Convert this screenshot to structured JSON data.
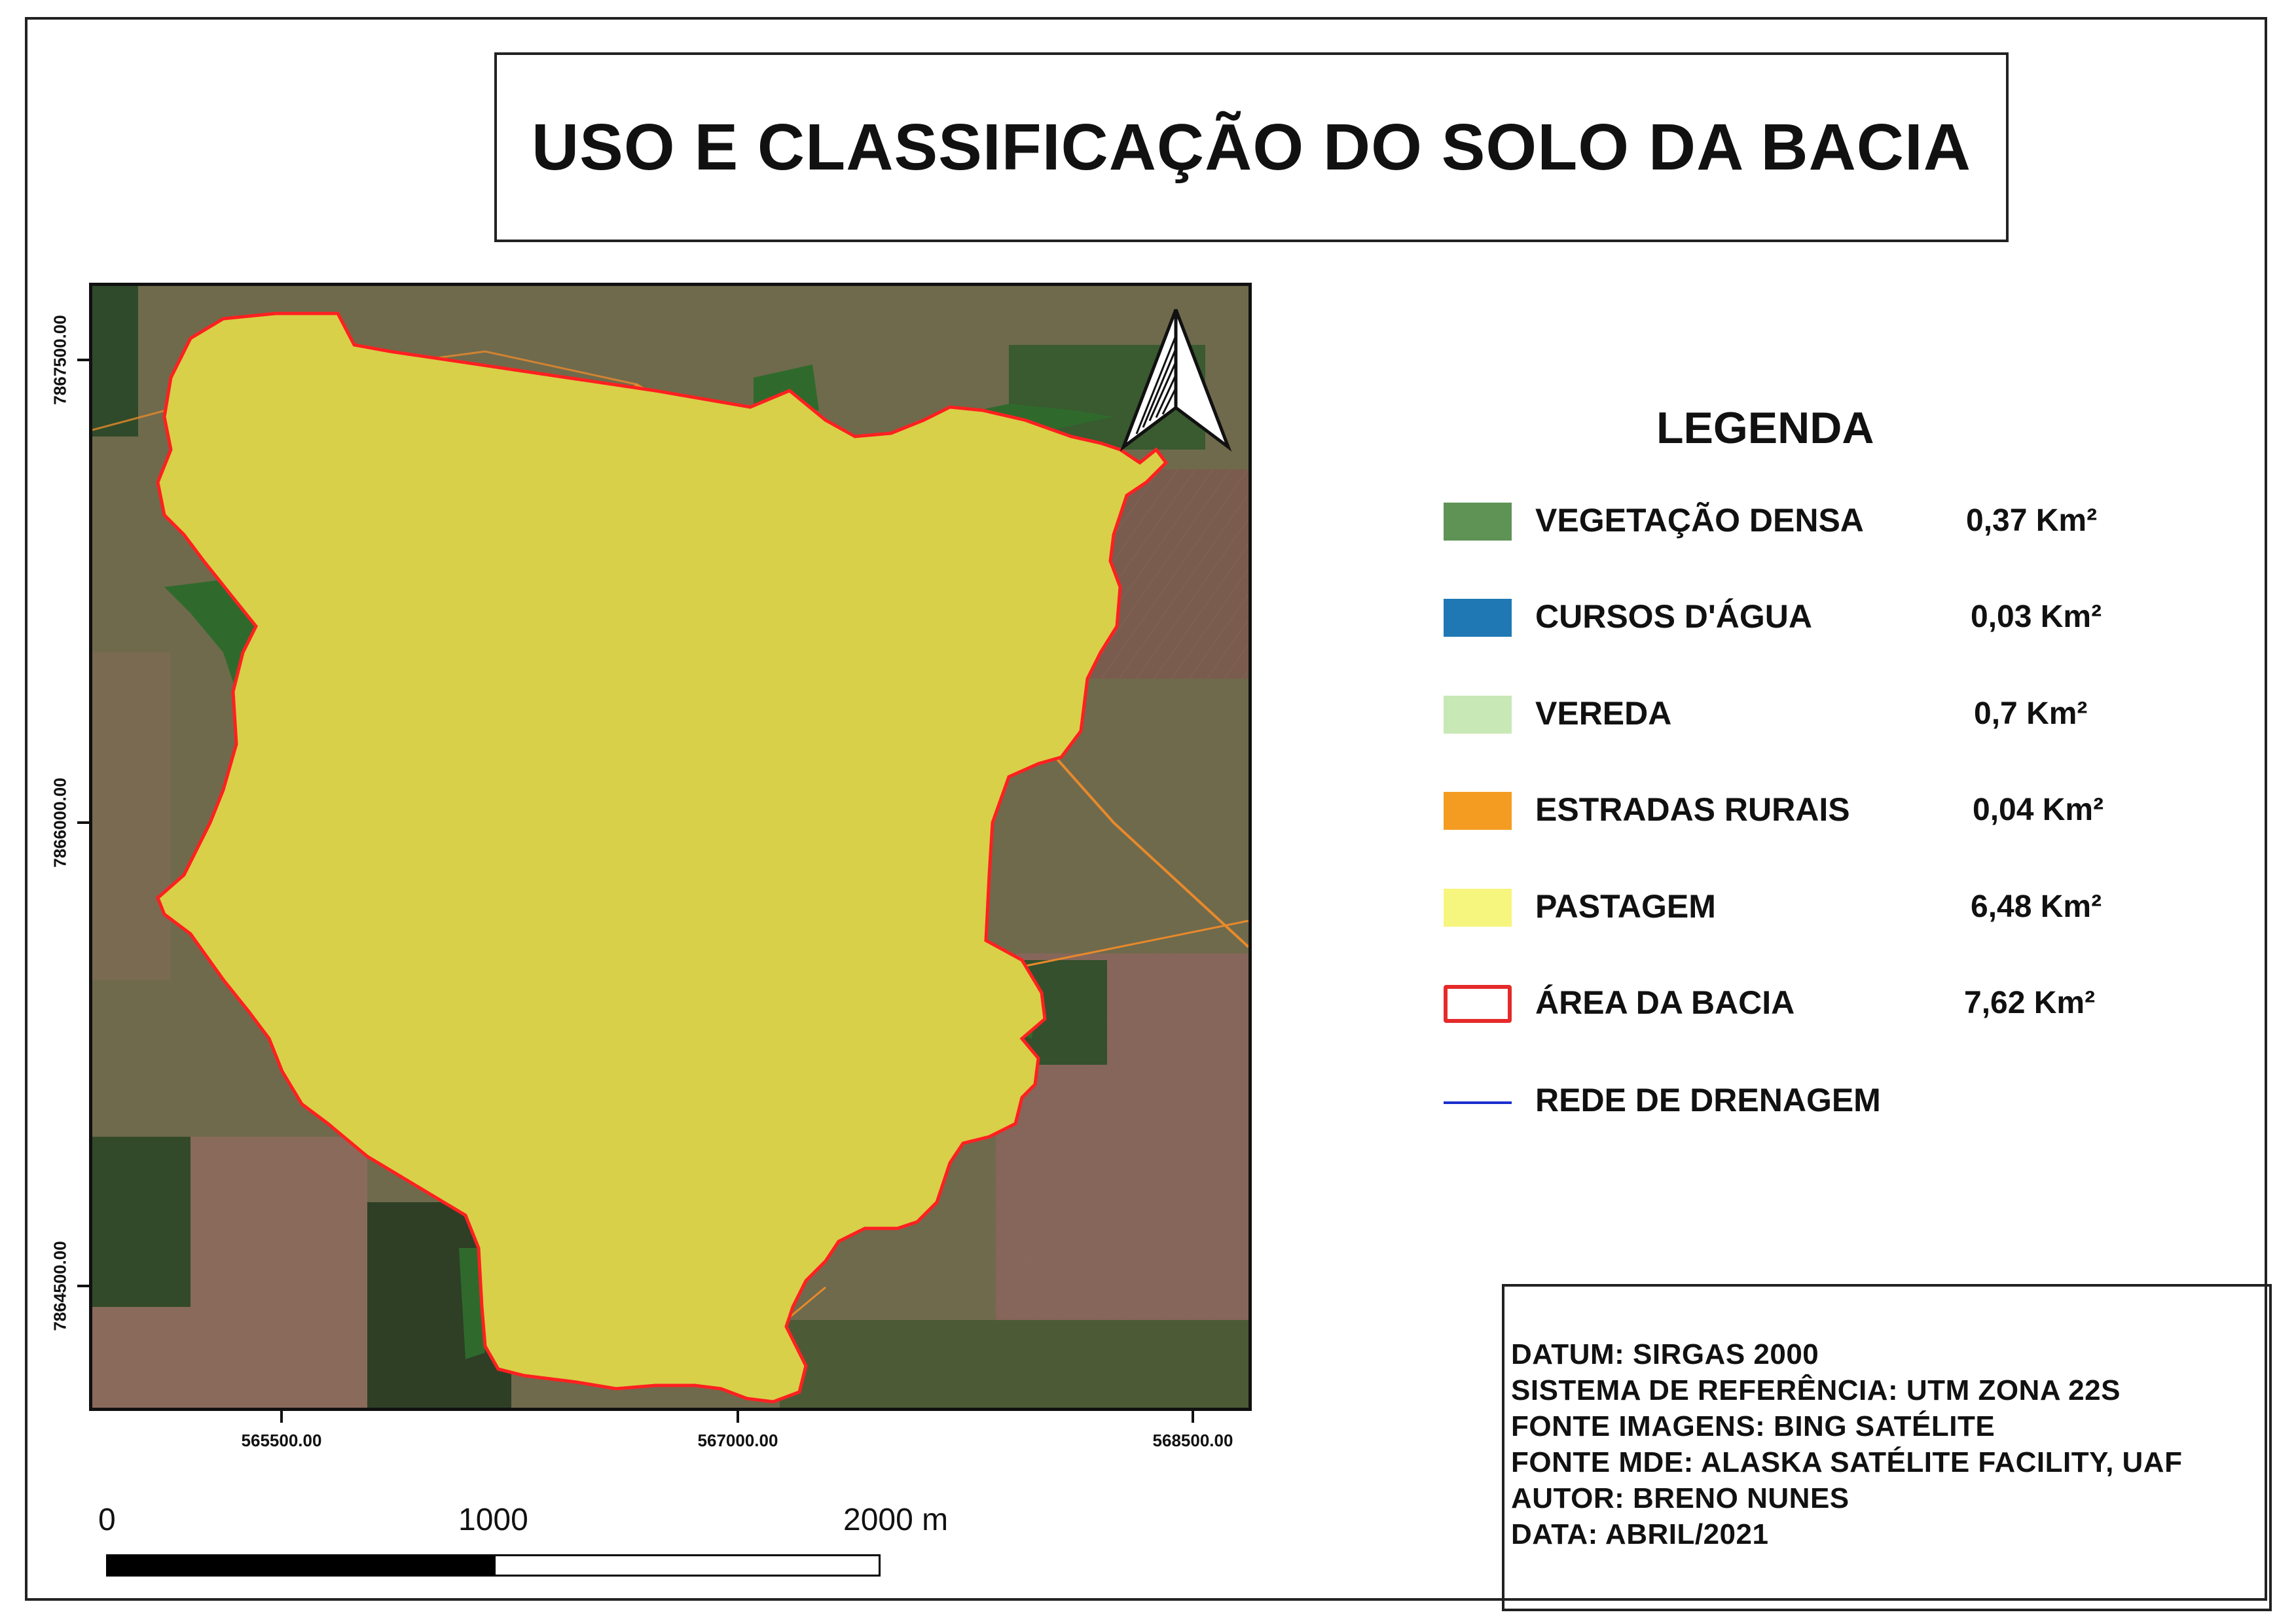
{
  "title": "USO E CLASSIFICAÇÃO DO SOLO DA BACIA",
  "coords": {
    "y": [
      "7867500.00",
      "7866000.00",
      "7864500.00"
    ],
    "x": [
      "565500.00",
      "567000.00",
      "568500.00"
    ]
  },
  "legend": {
    "title": "LEGENDA",
    "items": [
      {
        "label": "VEGETAÇÃO DENSA",
        "value": "0,37 Km²",
        "color": "#5f9356"
      },
      {
        "label": "CURSOS D'ÁGUA",
        "value": "0,03 Km²",
        "color": "#1f78b4"
      },
      {
        "label": "VEREDA",
        "value": "0,7 Km²",
        "color": "#c8e9b6"
      },
      {
        "label": "ESTRADAS RURAIS",
        "value": "0,04 Km²",
        "color": "#f39c21"
      },
      {
        "label": "PASTAGEM",
        "value": "6,48 Km²",
        "color": "#f6f57d"
      },
      {
        "label": "ÁREA DA BACIA",
        "value": "7,62 Km²",
        "color": "#e52a2a"
      },
      {
        "label": "REDE DE DRENAGEM",
        "value": "",
        "color": "#1c2fd0"
      }
    ]
  },
  "info": [
    "DATUM: SIRGAS 2000",
    "SISTEMA DE REFERÊNCIA: UTM ZONA 22S",
    "FONTE IMAGENS: BING SATÉLITE",
    "FONTE MDE: ALASKA SATÉLITE FACILITY, UAF",
    "AUTOR: BRENO NUNES",
    "DATA: ABRIL/2021"
  ],
  "scalebar": {
    "labels": [
      "0",
      "1000",
      "2000 m"
    ]
  }
}
